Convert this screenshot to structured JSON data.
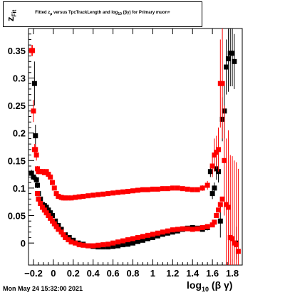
{
  "window": {
    "date_stamp": "Mon May 24 15:32:00 2021"
  },
  "chart_data": {
    "type": "scatter",
    "title": "Fitted  zμ  versus TpcTrackLength and log10 (βγ) for Primary muon+",
    "title_parts": {
      "a": "Fitted  z",
      "a_sub": "μ",
      "b": "  versus TpcTrackLength and log",
      "b_sub": "10",
      "c": " (βγ) for Primary muon+"
    },
    "ylabel": {
      "main": "z",
      "sub": "Fit"
    },
    "xlabel": {
      "main": "log",
      "sub": "10",
      "rest": "(β γ)"
    },
    "xlim": [
      -0.25,
      1.9
    ],
    "ylim": [
      -0.04,
      0.39
    ],
    "x_ticks": [
      -0.2,
      0,
      0.2,
      0.4,
      0.6,
      0.8,
      1,
      1.2,
      1.4,
      1.6,
      1.8
    ],
    "x_tick_labels": [
      "−0.2",
      "0",
      "0.2",
      "0.4",
      "0.6",
      "0.8",
      "1",
      "1.2",
      "1.4",
      "1.6",
      "1.8"
    ],
    "y_ticks": [
      0,
      0.05,
      0.1,
      0.15,
      0.2,
      0.25,
      0.3,
      0.35
    ],
    "y_tick_labels": [
      "0",
      "0.05",
      "0.1",
      "0.15",
      "0.2",
      "0.25",
      "0.3",
      "0.35"
    ],
    "grid": false,
    "series": [
      {
        "color": "#000000",
        "marker": "square",
        "x": [
          -0.22,
          -0.2,
          -0.19,
          -0.18,
          -0.17,
          -0.16,
          -0.15,
          -0.13,
          -0.11,
          -0.09,
          -0.07,
          -0.05,
          -0.03,
          -0.01,
          0.02,
          0.05,
          0.08,
          0.12,
          0.16,
          0.2,
          0.25,
          0.3,
          0.35,
          0.4,
          0.45,
          0.5,
          0.55,
          0.6,
          0.65,
          0.7,
          0.75,
          0.8,
          0.85,
          0.9,
          0.95,
          1.0,
          1.05,
          1.1,
          1.15,
          1.2,
          1.25,
          1.3,
          1.35,
          1.4,
          1.45,
          1.5,
          1.55,
          1.58,
          1.6,
          1.62,
          1.64,
          1.66,
          1.68,
          1.7,
          1.72,
          1.74,
          1.76,
          1.78,
          1.8,
          1.82,
          1.84
        ],
        "y": [
          0.127,
          0.12,
          0.29,
          0.195,
          0.115,
          0.105,
          0.09,
          0.08,
          0.07,
          0.068,
          0.065,
          0.06,
          0.055,
          0.05,
          0.04,
          0.032,
          0.025,
          0.015,
          0.01,
          0.005,
          0.0,
          -0.002,
          -0.005,
          -0.006,
          -0.007,
          -0.007,
          -0.007,
          -0.006,
          -0.005,
          -0.003,
          -0.002,
          0.0,
          0.003,
          0.005,
          0.008,
          0.01,
          0.013,
          0.016,
          0.018,
          0.02,
          0.022,
          0.025,
          0.027,
          0.028,
          0.027,
          0.025,
          0.028,
          0.13,
          0.09,
          0.1,
          0.135,
          0.13,
          0.04,
          0.225,
          0.24,
          0.32,
          0.335,
          0.345,
          0.345,
          0.33,
          0.0
        ],
        "err": [
          0.006,
          0.006,
          0.04,
          0.02,
          0.006,
          0.005,
          0.004,
          0.003,
          0.003,
          0.002,
          0.002,
          0.002,
          0.002,
          0.002,
          0.002,
          0.002,
          0.002,
          0.002,
          0.002,
          0.002,
          0.002,
          0.002,
          0.002,
          0.002,
          0.002,
          0.002,
          0.002,
          0.002,
          0.002,
          0.002,
          0.002,
          0.002,
          0.002,
          0.002,
          0.002,
          0.002,
          0.002,
          0.002,
          0.002,
          0.002,
          0.002,
          0.002,
          0.003,
          0.003,
          0.003,
          0.004,
          0.005,
          0.01,
          0.01,
          0.01,
          0.02,
          0.02,
          0.03,
          0.04,
          0.05,
          0.05,
          0.06,
          0.06,
          0.06,
          0.05,
          0.03
        ]
      },
      {
        "color": "#ff0000",
        "marker": "square",
        "x": [
          -0.22,
          -0.21,
          -0.2,
          -0.19,
          -0.18,
          -0.17,
          -0.16,
          -0.15,
          -0.13,
          -0.11,
          -0.09,
          -0.07,
          -0.05,
          -0.03,
          -0.01,
          0.01,
          0.03,
          0.05,
          0.08,
          0.1,
          0.12,
          0.15,
          0.18,
          0.22,
          0.26,
          0.3,
          0.35,
          0.4,
          0.45,
          0.5,
          0.55,
          0.6,
          0.65,
          0.7,
          0.75,
          0.8,
          0.85,
          0.9,
          0.95,
          1.0,
          1.05,
          1.1,
          1.15,
          1.2,
          1.25,
          1.3,
          1.35,
          1.4,
          1.45,
          1.5,
          1.55,
          1.6,
          1.62,
          1.64,
          1.66,
          1.68,
          1.7,
          1.72,
          1.74,
          1.76,
          1.78,
          1.8,
          1.82,
          1.84,
          1.86
        ],
        "y": [
          0.35,
          0.35,
          0.24,
          0.17,
          0.17,
          0.16,
          0.135,
          0.13,
          0.13,
          0.13,
          0.128,
          0.13,
          0.125,
          0.12,
          0.11,
          0.1,
          0.09,
          0.085,
          0.083,
          0.082,
          0.082,
          0.082,
          0.082,
          0.083,
          0.084,
          0.085,
          0.086,
          0.087,
          0.088,
          0.089,
          0.09,
          0.091,
          0.092,
          0.093,
          0.094,
          0.095,
          0.096,
          0.097,
          0.097,
          0.098,
          0.098,
          0.099,
          0.099,
          0.1,
          0.1,
          0.099,
          0.098,
          0.097,
          0.097,
          0.1,
          0.105,
          0.14,
          0.16,
          0.165,
          0.17,
          0.29,
          0.29,
          0.15,
          0.07,
          0.065,
          0.01,
          0.008,
          0.0,
          -0.003,
          -0.015
        ],
        "y2": [
          null,
          null,
          null,
          null,
          null,
          null,
          0.09,
          0.08,
          0.072,
          0.065,
          0.06,
          0.055,
          0.05,
          0.045,
          0.04,
          0.035,
          0.03,
          0.025,
          0.02,
          0.015,
          0.01,
          0.006,
          0.002,
          0.0,
          -0.003,
          -0.004,
          -0.005,
          -0.005,
          -0.004,
          -0.003,
          -0.002,
          0.0,
          0.002,
          0.004,
          0.006,
          0.008,
          0.01,
          0.012,
          0.014,
          0.016,
          0.018,
          0.02,
          0.022,
          0.024,
          0.025,
          0.026,
          0.026,
          0.025,
          0.026,
          0.028,
          0.03,
          0.033,
          0.038,
          0.05,
          0.06,
          0.07,
          0.08,
          null,
          null,
          null,
          null,
          null,
          null,
          null,
          null
        ],
        "err": [
          0.01,
          0.01,
          0.02,
          0.01,
          0.01,
          0.01,
          0.005,
          0.005,
          0.004,
          0.004,
          0.003,
          0.003,
          0.003,
          0.003,
          0.003,
          0.002,
          0.002,
          0.002,
          0.002,
          0.002,
          0.002,
          0.002,
          0.002,
          0.002,
          0.002,
          0.002,
          0.002,
          0.002,
          0.002,
          0.002,
          0.002,
          0.002,
          0.002,
          0.002,
          0.002,
          0.002,
          0.002,
          0.002,
          0.002,
          0.002,
          0.002,
          0.002,
          0.002,
          0.002,
          0.002,
          0.002,
          0.002,
          0.003,
          0.003,
          0.005,
          0.008,
          0.02,
          0.03,
          0.03,
          0.04,
          0.08,
          0.1,
          0.1,
          0.12,
          0.14,
          0.15,
          0.15,
          0.15,
          0.15,
          0.15
        ]
      }
    ]
  }
}
